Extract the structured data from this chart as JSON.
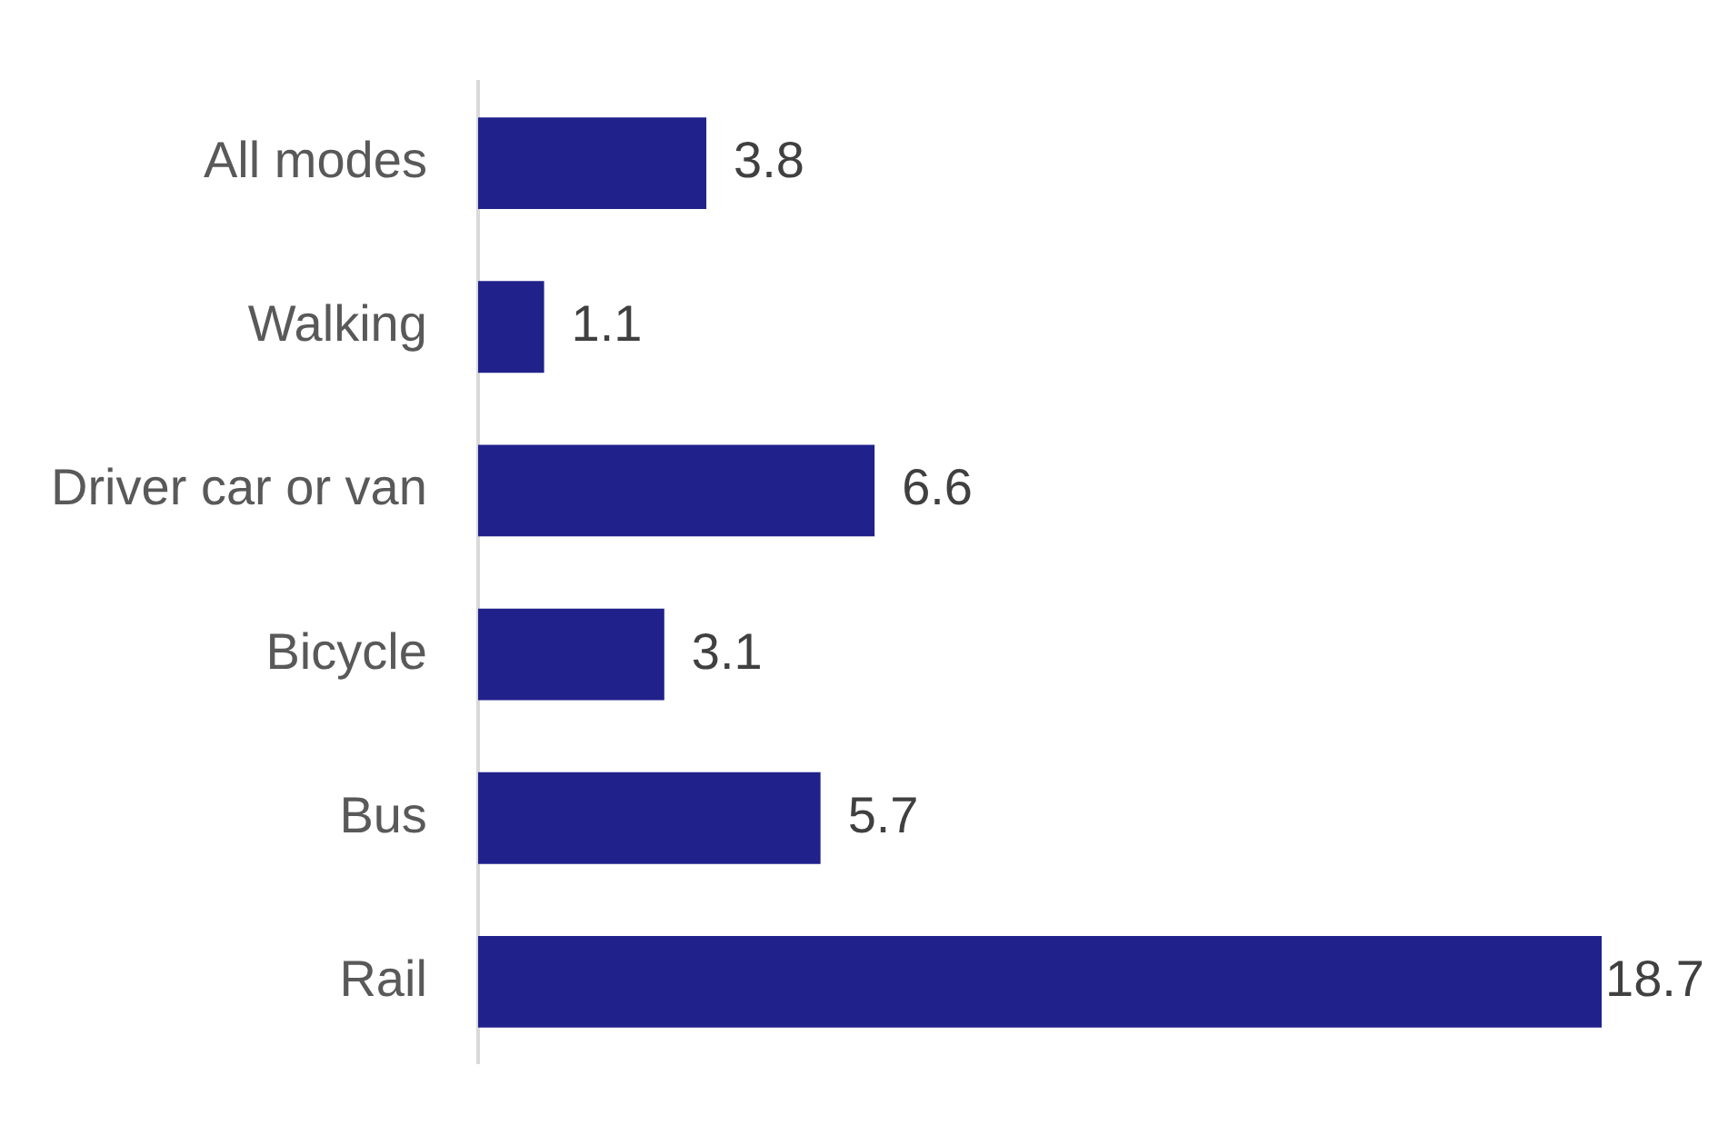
{
  "chart_data": {
    "type": "bar",
    "orientation": "horizontal",
    "categories": [
      "All modes",
      "Walking",
      "Driver car or van",
      "Bicycle",
      "Bus",
      "Rail"
    ],
    "values": [
      3.8,
      1.1,
      6.6,
      3.1,
      5.7,
      18.7
    ],
    "color": "#21218c",
    "data_labels": true,
    "grid": false,
    "legend": false,
    "tick_labels": "y"
  }
}
